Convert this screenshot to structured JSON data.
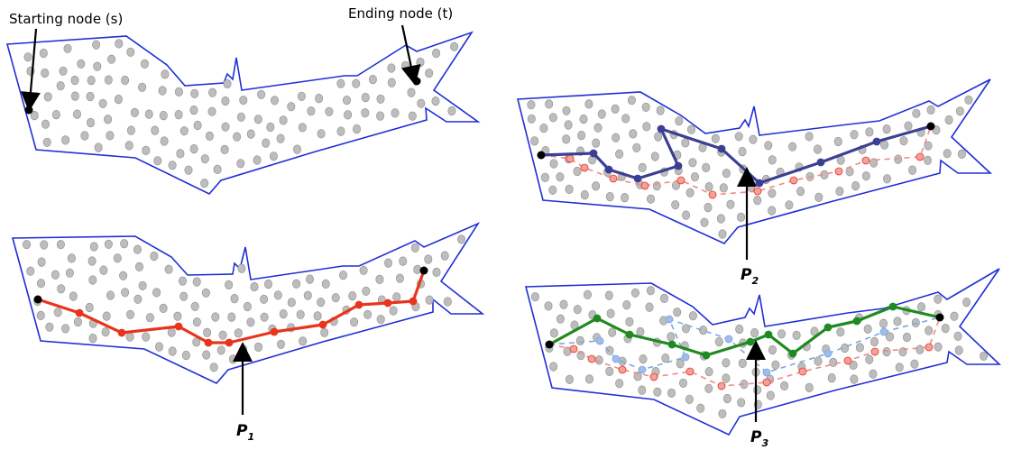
{
  "labels": {
    "start_node": "Starting node (s)",
    "end_node": "Ending node (t)",
    "p1": "P",
    "p1_sub": "1",
    "p2": "P",
    "p2_sub": "2",
    "p3": "P",
    "p3_sub": "3"
  },
  "colors": {
    "boundary": "#1f2fd6",
    "node_fill": "#bdbdbd",
    "node_stroke": "#8e8e8e",
    "terminal": "#000000",
    "path1": "#e8341c",
    "path1_faded": "#f08a86",
    "path2": "#3b3f94",
    "path2_faded": "#7aa9e0",
    "path3": "#1f8a1f"
  }
}
